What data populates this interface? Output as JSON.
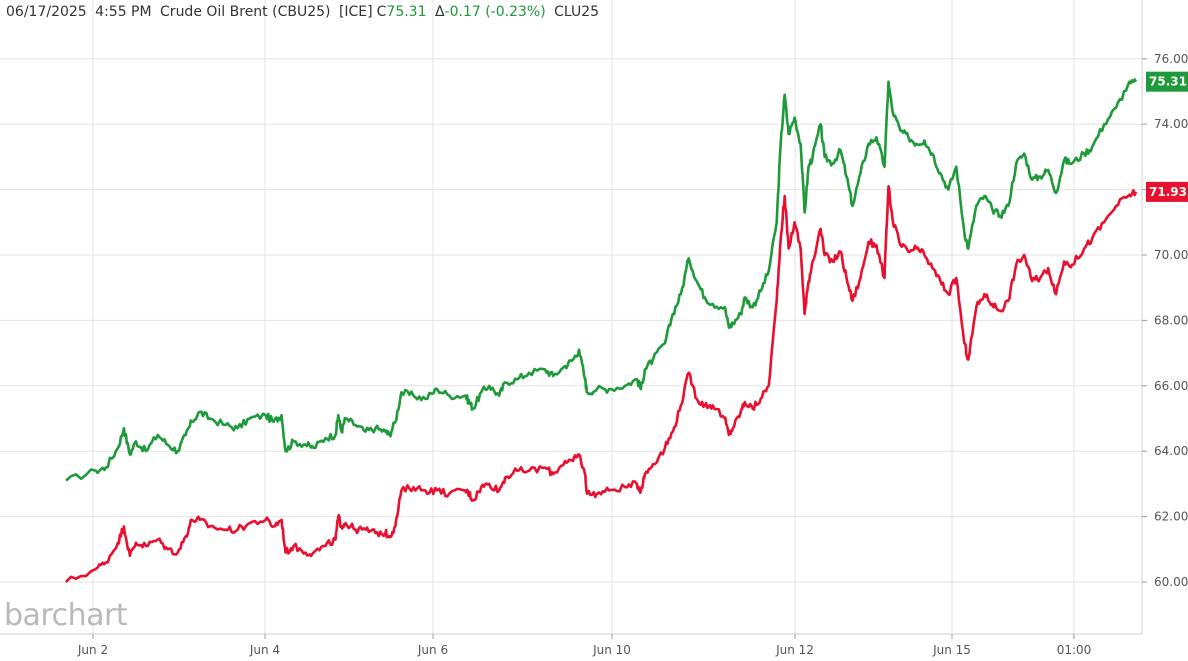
{
  "header": {
    "date": "06/17/2025",
    "time": "4:55 PM",
    "name": "Crude Oil Brent (CBU25)",
    "exchange": "[ICE]",
    "close_label": "C",
    "close": "75.31",
    "change_label": "Δ",
    "change": "-0.17 (-0.23%)",
    "symbol2": "CLU25"
  },
  "logo": {
    "text": "barchart"
  },
  "colors": {
    "series1": "#1e9a3a",
    "series2": "#e8102e",
    "grid": "#e3e3e3",
    "close_text": "#1e9a3a"
  },
  "chart_data": {
    "type": "line",
    "xlabel": "",
    "ylabel": "",
    "ylim": [
      58.5,
      77.5
    ],
    "grid": true,
    "y_axis_position": "right",
    "yticks": [
      "60.00",
      "62.00",
      "64.00",
      "66.00",
      "68.00",
      "70.00",
      "72.00",
      "74.00",
      "76.00"
    ],
    "xticks": [
      "Jun 2",
      "Jun 4",
      "Jun 6",
      "Jun 10",
      "Jun 12",
      "Jun 15",
      "01:00"
    ],
    "series": [
      {
        "name": "CBU25",
        "last_label": "75.31",
        "points": [
          [
            0.0,
            63.1
          ],
          [
            0.75,
            63.4
          ],
          [
            1.0,
            63.5
          ],
          [
            1.3,
            64.1
          ],
          [
            1.45,
            64.7
          ],
          [
            1.6,
            63.9
          ],
          [
            1.75,
            64.3
          ],
          [
            2.0,
            64.0
          ],
          [
            2.3,
            64.5
          ],
          [
            2.55,
            64.2
          ],
          [
            2.8,
            64.0
          ],
          [
            3.0,
            64.5
          ],
          [
            3.15,
            64.9
          ],
          [
            3.35,
            65.2
          ],
          [
            3.6,
            65.0
          ],
          [
            4.0,
            64.8
          ],
          [
            4.3,
            64.7
          ],
          [
            4.6,
            65.0
          ],
          [
            5.0,
            65.1
          ],
          [
            5.2,
            64.9
          ],
          [
            5.4,
            65.1
          ],
          [
            5.5,
            64.0
          ],
          [
            5.7,
            64.3
          ],
          [
            6.0,
            64.2
          ],
          [
            6.2,
            64.1
          ],
          [
            6.5,
            64.4
          ],
          [
            6.75,
            64.5
          ],
          [
            6.82,
            65.1
          ],
          [
            6.9,
            64.6
          ],
          [
            7.0,
            65.0
          ],
          [
            7.25,
            64.8
          ],
          [
            7.5,
            64.6
          ],
          [
            7.75,
            64.7
          ],
          [
            8.0,
            64.6
          ],
          [
            8.1,
            64.5
          ],
          [
            8.25,
            64.9
          ],
          [
            8.4,
            65.8
          ],
          [
            8.7,
            65.7
          ],
          [
            9.0,
            65.6
          ],
          [
            9.3,
            65.9
          ],
          [
            9.6,
            65.7
          ],
          [
            10.0,
            65.7
          ],
          [
            10.1,
            65.5
          ],
          [
            10.2,
            65.3
          ],
          [
            10.4,
            65.8
          ],
          [
            10.6,
            66.0
          ],
          [
            10.85,
            65.7
          ],
          [
            11.0,
            66.1
          ],
          [
            11.3,
            66.2
          ],
          [
            11.6,
            66.4
          ],
          [
            12.0,
            66.5
          ],
          [
            12.2,
            66.3
          ],
          [
            12.5,
            66.6
          ],
          [
            12.7,
            66.8
          ],
          [
            12.85,
            67.1
          ],
          [
            13.0,
            66.2
          ],
          [
            13.05,
            65.8
          ],
          [
            13.3,
            65.9
          ],
          [
            13.6,
            65.9
          ],
          [
            14.0,
            66.0
          ],
          [
            14.3,
            66.2
          ],
          [
            14.4,
            65.9
          ],
          [
            14.5,
            66.5
          ],
          [
            14.7,
            66.8
          ],
          [
            15.0,
            67.3
          ],
          [
            15.2,
            68.2
          ],
          [
            15.4,
            68.8
          ],
          [
            15.6,
            69.9
          ],
          [
            15.8,
            69.2
          ],
          [
            16.0,
            68.7
          ],
          [
            16.2,
            68.5
          ],
          [
            16.5,
            68.4
          ],
          [
            16.6,
            67.8
          ],
          [
            16.7,
            67.9
          ],
          [
            16.9,
            68.2
          ],
          [
            17.0,
            68.7
          ],
          [
            17.2,
            68.4
          ],
          [
            17.4,
            68.9
          ],
          [
            17.6,
            69.5
          ],
          [
            17.8,
            71.0
          ],
          [
            17.9,
            73.4
          ],
          [
            18.0,
            74.9
          ],
          [
            18.1,
            73.7
          ],
          [
            18.25,
            74.2
          ],
          [
            18.4,
            73.4
          ],
          [
            18.5,
            71.3
          ],
          [
            18.6,
            72.7
          ],
          [
            18.7,
            73.0
          ],
          [
            18.9,
            74.0
          ],
          [
            19.0,
            73.0
          ],
          [
            19.2,
            72.8
          ],
          [
            19.4,
            73.2
          ],
          [
            19.55,
            72.4
          ],
          [
            19.7,
            71.5
          ],
          [
            19.9,
            72.5
          ],
          [
            20.1,
            73.4
          ],
          [
            20.3,
            73.6
          ],
          [
            20.5,
            72.7
          ],
          [
            20.6,
            75.3
          ],
          [
            20.7,
            74.4
          ],
          [
            20.9,
            73.8
          ],
          [
            21.1,
            73.6
          ],
          [
            21.3,
            73.4
          ],
          [
            21.5,
            73.5
          ],
          [
            21.7,
            73.1
          ],
          [
            21.9,
            72.5
          ],
          [
            22.1,
            72.0
          ],
          [
            22.3,
            72.7
          ],
          [
            22.5,
            70.7
          ],
          [
            22.6,
            70.2
          ],
          [
            22.8,
            71.5
          ],
          [
            23.0,
            71.8
          ],
          [
            23.2,
            71.4
          ],
          [
            23.4,
            71.2
          ],
          [
            23.6,
            71.5
          ],
          [
            23.8,
            72.8
          ],
          [
            24.0,
            73.1
          ],
          [
            24.2,
            72.3
          ],
          [
            24.4,
            72.4
          ],
          [
            24.6,
            72.6
          ],
          [
            24.8,
            71.9
          ],
          [
            25.0,
            72.9
          ],
          [
            25.2,
            72.8
          ],
          [
            25.5,
            73.1
          ],
          [
            25.7,
            73.3
          ],
          [
            26.0,
            74.0
          ],
          [
            26.3,
            74.5
          ],
          [
            26.6,
            75.2
          ],
          [
            26.8,
            75.3
          ]
        ]
      },
      {
        "name": "CLU25",
        "last_label": "71.93",
        "points": [
          [
            0.0,
            60.0
          ],
          [
            0.75,
            60.4
          ],
          [
            1.0,
            60.6
          ],
          [
            1.3,
            61.2
          ],
          [
            1.45,
            61.7
          ],
          [
            1.6,
            60.8
          ],
          [
            1.75,
            61.2
          ],
          [
            2.0,
            61.1
          ],
          [
            2.3,
            61.3
          ],
          [
            2.55,
            61.0
          ],
          [
            2.8,
            60.9
          ],
          [
            3.0,
            61.4
          ],
          [
            3.15,
            61.9
          ],
          [
            3.35,
            61.9
          ],
          [
            3.6,
            61.7
          ],
          [
            4.0,
            61.6
          ],
          [
            4.3,
            61.6
          ],
          [
            4.6,
            61.8
          ],
          [
            5.0,
            61.9
          ],
          [
            5.2,
            61.7
          ],
          [
            5.4,
            61.9
          ],
          [
            5.5,
            60.9
          ],
          [
            5.7,
            61.1
          ],
          [
            6.0,
            60.9
          ],
          [
            6.2,
            60.9
          ],
          [
            6.5,
            61.1
          ],
          [
            6.75,
            61.3
          ],
          [
            6.82,
            62.0
          ],
          [
            6.9,
            61.7
          ],
          [
            7.0,
            61.8
          ],
          [
            7.25,
            61.6
          ],
          [
            7.5,
            61.6
          ],
          [
            7.75,
            61.5
          ],
          [
            8.0,
            61.5
          ],
          [
            8.1,
            61.4
          ],
          [
            8.25,
            61.7
          ],
          [
            8.4,
            62.8
          ],
          [
            8.7,
            62.9
          ],
          [
            9.0,
            62.8
          ],
          [
            9.3,
            62.8
          ],
          [
            9.6,
            62.7
          ],
          [
            10.0,
            62.8
          ],
          [
            10.1,
            62.7
          ],
          [
            10.2,
            62.5
          ],
          [
            10.4,
            62.9
          ],
          [
            10.6,
            63.0
          ],
          [
            10.85,
            62.8
          ],
          [
            11.0,
            63.2
          ],
          [
            11.3,
            63.4
          ],
          [
            11.6,
            63.4
          ],
          [
            12.0,
            63.5
          ],
          [
            12.2,
            63.3
          ],
          [
            12.5,
            63.7
          ],
          [
            12.7,
            63.7
          ],
          [
            12.85,
            63.9
          ],
          [
            13.0,
            63.3
          ],
          [
            13.05,
            62.7
          ],
          [
            13.3,
            62.7
          ],
          [
            13.6,
            62.8
          ],
          [
            14.0,
            62.9
          ],
          [
            14.3,
            63.0
          ],
          [
            14.4,
            62.8
          ],
          [
            14.5,
            63.3
          ],
          [
            14.7,
            63.6
          ],
          [
            15.0,
            64.1
          ],
          [
            15.2,
            64.6
          ],
          [
            15.4,
            65.4
          ],
          [
            15.6,
            66.4
          ],
          [
            15.8,
            65.6
          ],
          [
            16.0,
            65.4
          ],
          [
            16.2,
            65.4
          ],
          [
            16.5,
            65.0
          ],
          [
            16.6,
            64.5
          ],
          [
            16.7,
            64.7
          ],
          [
            16.9,
            65.2
          ],
          [
            17.0,
            65.5
          ],
          [
            17.2,
            65.3
          ],
          [
            17.4,
            65.6
          ],
          [
            17.6,
            66.0
          ],
          [
            17.8,
            68.6
          ],
          [
            17.9,
            70.5
          ],
          [
            18.0,
            71.8
          ],
          [
            18.1,
            70.2
          ],
          [
            18.25,
            71.0
          ],
          [
            18.4,
            70.2
          ],
          [
            18.5,
            68.2
          ],
          [
            18.6,
            69.2
          ],
          [
            18.7,
            69.8
          ],
          [
            18.9,
            70.8
          ],
          [
            19.0,
            70.0
          ],
          [
            19.2,
            69.8
          ],
          [
            19.4,
            70.1
          ],
          [
            19.55,
            69.3
          ],
          [
            19.7,
            68.6
          ],
          [
            19.9,
            69.3
          ],
          [
            20.1,
            70.4
          ],
          [
            20.3,
            70.3
          ],
          [
            20.5,
            69.3
          ],
          [
            20.6,
            72.1
          ],
          [
            20.7,
            71.1
          ],
          [
            20.9,
            70.3
          ],
          [
            21.1,
            70.1
          ],
          [
            21.3,
            70.2
          ],
          [
            21.5,
            70.0
          ],
          [
            21.7,
            69.6
          ],
          [
            21.9,
            69.2
          ],
          [
            22.1,
            68.8
          ],
          [
            22.3,
            69.3
          ],
          [
            22.5,
            67.3
          ],
          [
            22.6,
            66.8
          ],
          [
            22.8,
            68.4
          ],
          [
            23.0,
            68.8
          ],
          [
            23.2,
            68.5
          ],
          [
            23.4,
            68.3
          ],
          [
            23.6,
            68.6
          ],
          [
            23.8,
            69.7
          ],
          [
            24.0,
            70.0
          ],
          [
            24.2,
            69.2
          ],
          [
            24.4,
            69.3
          ],
          [
            24.6,
            69.6
          ],
          [
            24.8,
            68.8
          ],
          [
            25.0,
            69.8
          ],
          [
            25.2,
            69.7
          ],
          [
            25.5,
            70.2
          ],
          [
            25.7,
            70.5
          ],
          [
            26.0,
            71.0
          ],
          [
            26.3,
            71.5
          ],
          [
            26.6,
            71.8
          ],
          [
            26.8,
            71.93
          ]
        ]
      }
    ]
  }
}
